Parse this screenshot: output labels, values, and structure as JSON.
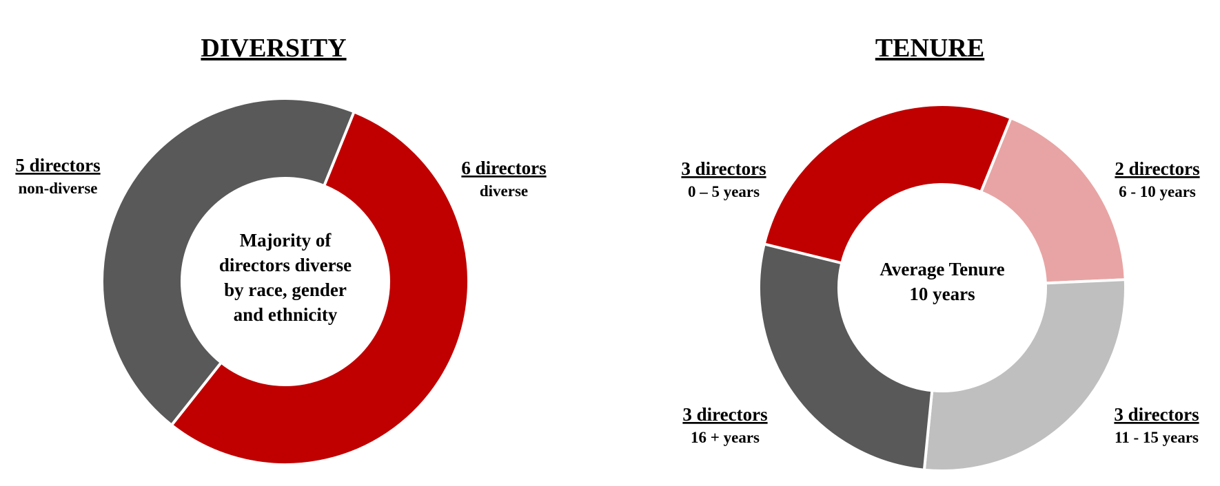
{
  "chart_data": [
    {
      "type": "pie",
      "variant": "donut",
      "title": "DIVERSITY",
      "center_text": [
        "Majority of",
        "directors diverse",
        "by race, gender",
        "and ethnicity"
      ],
      "slices": [
        {
          "label": "6 directors",
          "sublabel": "diverse",
          "value": 6,
          "color": "#c00000"
        },
        {
          "label": "5 directors",
          "sublabel": "non-diverse",
          "value": 5,
          "color": "#595959"
        }
      ]
    },
    {
      "type": "pie",
      "variant": "donut",
      "title": "TENURE",
      "center_text": [
        "Average Tenure",
        "10 years"
      ],
      "slices": [
        {
          "label": "2 directors",
          "sublabel": "6 - 10 years",
          "value": 2,
          "color": "#e8a4a4"
        },
        {
          "label": "3 directors",
          "sublabel": "11 - 15 years",
          "value": 3,
          "color": "#bfbfbf"
        },
        {
          "label": "3 directors",
          "sublabel": "16 + years",
          "value": 3,
          "color": "#595959"
        },
        {
          "label": "3 directors",
          "sublabel": "0 – 5 years",
          "value": 3,
          "color": "#c00000"
        }
      ]
    }
  ]
}
